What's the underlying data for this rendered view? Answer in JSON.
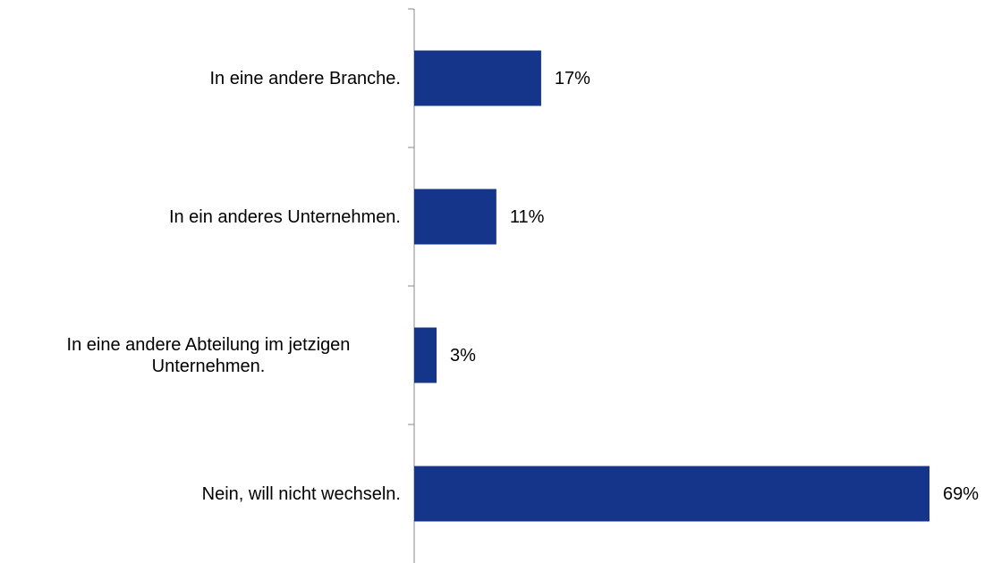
{
  "chart_data": {
    "type": "bar",
    "orientation": "horizontal",
    "categories": [
      "In eine andere Branche.",
      "In ein anderes Unternehmen.",
      "In eine andere Abteilung im jetzigen Unternehmen.",
      "Nein, will nicht wechseln."
    ],
    "values": [
      17,
      11,
      3,
      69
    ],
    "value_labels": [
      "17%",
      "11%",
      "3%",
      "69%"
    ],
    "color": "#14358a"
  }
}
